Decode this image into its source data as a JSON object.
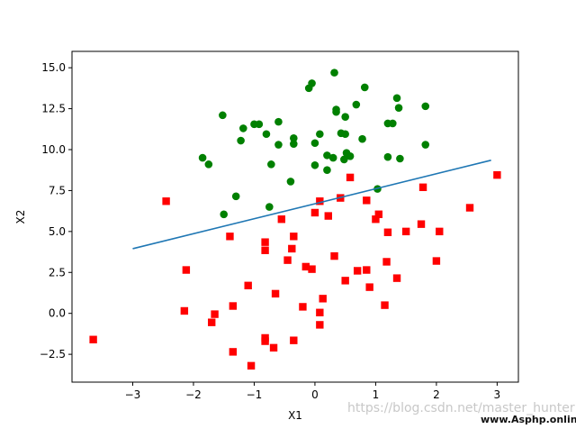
{
  "chart_data": {
    "type": "scatter",
    "xlabel": "X1",
    "ylabel": "X2",
    "xlim": [
      -4.0,
      3.35
    ],
    "ylim": [
      -4.2,
      16.0
    ],
    "xticks": [
      -3,
      -2,
      -1,
      0,
      1,
      2,
      3
    ],
    "xtick_labels": [
      "−3",
      "−2",
      "−1",
      "0",
      "1",
      "2",
      "3"
    ],
    "yticks": [
      -2.5,
      0.0,
      2.5,
      5.0,
      7.5,
      10.0,
      12.5,
      15.0
    ],
    "ytick_labels": [
      "−2.5",
      "0.0",
      "2.5",
      "5.0",
      "7.5",
      "10.0",
      "12.5",
      "15.0"
    ],
    "grid": false,
    "series": [
      {
        "marker": "circle",
        "color": "#008000",
        "points": [
          [
            0.32,
            14.7
          ],
          [
            -0.05,
            14.05
          ],
          [
            -0.1,
            13.75
          ],
          [
            0.82,
            13.8
          ],
          [
            1.35,
            13.15
          ],
          [
            0.68,
            12.75
          ],
          [
            1.38,
            12.55
          ],
          [
            1.82,
            12.65
          ],
          [
            -1.52,
            12.1
          ],
          [
            0.35,
            12.3
          ],
          [
            0.35,
            12.45
          ],
          [
            0.5,
            12.0
          ],
          [
            -0.6,
            11.7
          ],
          [
            -1.0,
            11.55
          ],
          [
            -0.92,
            11.55
          ],
          [
            1.2,
            11.6
          ],
          [
            1.28,
            11.6
          ],
          [
            -1.18,
            11.3
          ],
          [
            0.08,
            10.95
          ],
          [
            0.43,
            11.0
          ],
          [
            0.5,
            10.95
          ],
          [
            -0.8,
            10.95
          ],
          [
            -0.35,
            10.7
          ],
          [
            0.78,
            10.65
          ],
          [
            -1.22,
            10.55
          ],
          [
            0.0,
            10.4
          ],
          [
            -0.35,
            10.35
          ],
          [
            -0.6,
            10.3
          ],
          [
            1.82,
            10.3
          ],
          [
            0.52,
            9.8
          ],
          [
            0.58,
            9.6
          ],
          [
            1.2,
            9.55
          ],
          [
            0.2,
            9.65
          ],
          [
            0.3,
            9.5
          ],
          [
            1.4,
            9.45
          ],
          [
            0.48,
            9.4
          ],
          [
            -1.85,
            9.5
          ],
          [
            -1.75,
            9.1
          ],
          [
            -0.72,
            9.1
          ],
          [
            0.0,
            9.05
          ],
          [
            0.2,
            8.75
          ],
          [
            -0.4,
            8.05
          ],
          [
            -1.3,
            7.15
          ],
          [
            -1.5,
            6.05
          ],
          [
            -0.75,
            6.5
          ],
          [
            1.03,
            7.6
          ]
        ]
      },
      {
        "marker": "square",
        "color": "#ff0000",
        "points": [
          [
            3.0,
            8.45
          ],
          [
            0.58,
            8.3
          ],
          [
            1.78,
            7.7
          ],
          [
            0.42,
            7.05
          ],
          [
            0.85,
            6.9
          ],
          [
            -2.45,
            6.85
          ],
          [
            0.08,
            6.85
          ],
          [
            2.55,
            6.45
          ],
          [
            0.0,
            6.15
          ],
          [
            0.22,
            5.95
          ],
          [
            1.05,
            6.05
          ],
          [
            1.0,
            5.75
          ],
          [
            -0.55,
            5.75
          ],
          [
            1.75,
            5.45
          ],
          [
            2.05,
            5.0
          ],
          [
            1.2,
            4.95
          ],
          [
            1.5,
            5.0
          ],
          [
            -1.4,
            4.7
          ],
          [
            -0.35,
            4.7
          ],
          [
            -0.82,
            4.35
          ],
          [
            -0.82,
            3.85
          ],
          [
            -0.38,
            3.95
          ],
          [
            0.32,
            3.5
          ],
          [
            -0.45,
            3.25
          ],
          [
            1.18,
            3.15
          ],
          [
            2.0,
            3.2
          ],
          [
            -2.12,
            2.65
          ],
          [
            -0.15,
            2.85
          ],
          [
            -0.05,
            2.7
          ],
          [
            0.85,
            2.65
          ],
          [
            0.7,
            2.6
          ],
          [
            1.35,
            2.15
          ],
          [
            0.5,
            2.0
          ],
          [
            -1.1,
            1.7
          ],
          [
            0.9,
            1.6
          ],
          [
            -0.65,
            1.2
          ],
          [
            0.13,
            0.9
          ],
          [
            -1.35,
            0.45
          ],
          [
            -0.2,
            0.4
          ],
          [
            1.15,
            0.5
          ],
          [
            -2.15,
            0.15
          ],
          [
            0.08,
            0.05
          ],
          [
            -1.65,
            -0.05
          ],
          [
            0.08,
            -0.7
          ],
          [
            -1.7,
            -0.55
          ],
          [
            -3.65,
            -1.6
          ],
          [
            -0.82,
            -1.5
          ],
          [
            -0.35,
            -1.65
          ],
          [
            -0.82,
            -1.7
          ],
          [
            -0.68,
            -2.1
          ],
          [
            -1.35,
            -2.35
          ],
          [
            -1.05,
            -3.2
          ]
        ]
      },
      {
        "type": "line",
        "color": "#1f77b4",
        "points": [
          [
            -3.0,
            3.95
          ],
          [
            2.9,
            9.35
          ]
        ]
      }
    ]
  },
  "watermark": {
    "text": "https://blog.csdn.net/master_hunter",
    "site": "www.Asphp.online"
  }
}
